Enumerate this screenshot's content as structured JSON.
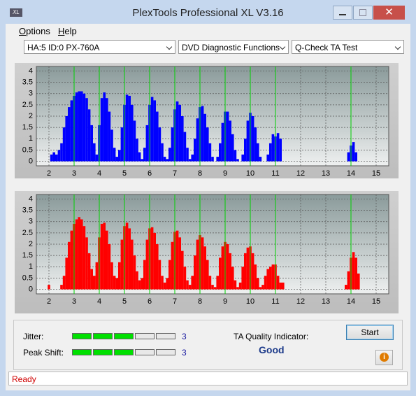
{
  "window": {
    "title": "PlexTools Professional XL V3.16"
  },
  "menu": [
    "Options",
    "Help"
  ],
  "selectors": [
    "HA:5 ID:0  PX-760A",
    "DVD Diagnostic Functions",
    "Q-Check TA Test"
  ],
  "chart_data": [
    {
      "type": "bar",
      "color": "#0000ff",
      "x": [
        2,
        2.1,
        2.2,
        2.3,
        2.4,
        2.5,
        2.6,
        2.7,
        2.8,
        2.9,
        3,
        3.1,
        3.2,
        3.3,
        3.4,
        3.5,
        3.6,
        3.7,
        3.8,
        3.9,
        4,
        4.1,
        4.2,
        4.3,
        4.4,
        4.5,
        4.6,
        4.7,
        4.8,
        4.9,
        5,
        5.1,
        5.2,
        5.3,
        5.4,
        5.5,
        5.6,
        5.7,
        5.8,
        5.9,
        6,
        6.1,
        6.2,
        6.3,
        6.4,
        6.5,
        6.6,
        6.7,
        6.8,
        6.9,
        7,
        7.1,
        7.2,
        7.3,
        7.4,
        7.5,
        7.6,
        7.7,
        7.8,
        7.9,
        8,
        8.1,
        8.2,
        8.3,
        8.4,
        8.5,
        8.6,
        8.7,
        8.8,
        8.9,
        9,
        9.1,
        9.2,
        9.3,
        9.4,
        9.5,
        9.6,
        9.7,
        9.8,
        9.9,
        10,
        10.1,
        10.2,
        10.3,
        10.4,
        10.5,
        10.6,
        10.7,
        10.8,
        10.9,
        11,
        11.1,
        11.2,
        11.3,
        11.4,
        11.5,
        11.6,
        11.7,
        11.8,
        11.9,
        12,
        12.1,
        12.2,
        12.3,
        12.4,
        12.5,
        12.6,
        12.7,
        12.8,
        12.9,
        13,
        13.1,
        13.2,
        13.3,
        13.4,
        13.5,
        13.6,
        13.7,
        13.8,
        13.9,
        14,
        14.1,
        14.2,
        14.3,
        14.4
      ],
      "values": [
        0,
        0.3,
        0.4,
        0.3,
        0.5,
        0.8,
        1.5,
        2,
        2.4,
        2.7,
        2.9,
        3.05,
        3.1,
        3.1,
        3,
        2.8,
        2.3,
        1.6,
        0.8,
        0.3,
        1.6,
        2.8,
        3.05,
        2.8,
        2.2,
        1.4,
        0.6,
        0.2,
        0.5,
        1.5,
        2.5,
        2.95,
        2.9,
        2.5,
        1.8,
        1,
        0.4,
        0.1,
        0.6,
        1.6,
        2.5,
        2.85,
        2.7,
        2.2,
        1.5,
        0.8,
        0.2,
        0.1,
        0.6,
        1.5,
        2.3,
        2.65,
        2.5,
        2,
        1.3,
        0.6,
        0.1,
        0.3,
        1,
        1.9,
        2.4,
        2.45,
        2.1,
        1.5,
        0.8,
        0.2,
        0,
        0.2,
        0.8,
        1.7,
        2.2,
        2.2,
        1.8,
        1.2,
        0.5,
        0.1,
        0,
        0.3,
        1,
        1.8,
        2.15,
        2,
        1.5,
        0.8,
        0.2,
        0,
        0,
        0.3,
        0.8,
        1.2,
        1.1,
        1.25,
        1,
        0,
        0,
        0,
        0,
        0,
        0,
        0,
        0,
        0,
        0,
        0,
        0,
        0,
        0,
        0,
        0,
        0,
        0,
        0,
        0,
        0,
        0,
        0,
        0,
        0,
        0,
        0.4,
        0.7,
        0.85,
        0.4,
        0,
        0
      ],
      "xlim": [
        1.5,
        15.5
      ],
      "ylim": [
        -0.2,
        4.2
      ],
      "xticks": [
        2,
        3,
        4,
        5,
        6,
        7,
        8,
        9,
        10,
        11,
        12,
        13,
        14,
        15
      ],
      "yticks": [
        0,
        0.5,
        1,
        1.5,
        2,
        2.5,
        3,
        3.5,
        4
      ],
      "grid": true,
      "reference_lines": {
        "values": [
          3,
          4,
          5,
          6,
          7,
          8,
          9,
          10,
          11,
          14
        ],
        "color": "#00d000"
      }
    },
    {
      "type": "bar",
      "color": "#ff0000",
      "x": [
        2,
        2.1,
        2.2,
        2.3,
        2.4,
        2.5,
        2.6,
        2.7,
        2.8,
        2.9,
        3,
        3.1,
        3.2,
        3.3,
        3.4,
        3.5,
        3.6,
        3.7,
        3.8,
        3.9,
        4,
        4.1,
        4.2,
        4.3,
        4.4,
        4.5,
        4.6,
        4.7,
        4.8,
        4.9,
        5,
        5.1,
        5.2,
        5.3,
        5.4,
        5.5,
        5.6,
        5.7,
        5.8,
        5.9,
        6,
        6.1,
        6.2,
        6.3,
        6.4,
        6.5,
        6.6,
        6.7,
        6.8,
        6.9,
        7,
        7.1,
        7.2,
        7.3,
        7.4,
        7.5,
        7.6,
        7.7,
        7.8,
        7.9,
        8,
        8.1,
        8.2,
        8.3,
        8.4,
        8.5,
        8.6,
        8.7,
        8.8,
        8.9,
        9,
        9.1,
        9.2,
        9.3,
        9.4,
        9.5,
        9.6,
        9.7,
        9.8,
        9.9,
        10,
        10.1,
        10.2,
        10.3,
        10.4,
        10.5,
        10.6,
        10.7,
        10.8,
        10.9,
        11,
        11.1,
        11.2,
        11.3,
        11.4,
        11.5,
        11.6,
        11.7,
        11.8,
        11.9,
        12,
        12.1,
        12.2,
        12.3,
        12.4,
        12.5,
        12.6,
        12.7,
        12.8,
        12.9,
        13,
        13.1,
        13.2,
        13.3,
        13.4,
        13.5,
        13.6,
        13.7,
        13.8,
        13.9,
        14,
        14.1,
        14.2,
        14.3,
        14.4
      ],
      "values": [
        0.2,
        0,
        0,
        0,
        0,
        0.2,
        0.6,
        1.4,
        2.1,
        2.6,
        2.9,
        3.1,
        3.2,
        3.1,
        2.8,
        2.3,
        1.6,
        0.9,
        0.6,
        1.2,
        2.3,
        2.9,
        2.95,
        2.6,
        2,
        1.2,
        0.6,
        0.5,
        1.2,
        2.2,
        2.8,
        2.95,
        2.7,
        2.2,
        1.5,
        0.8,
        0.4,
        0.5,
        1.3,
        2.2,
        2.7,
        2.75,
        2.5,
        2,
        1.3,
        0.6,
        0.3,
        0.5,
        1.3,
        2.1,
        2.55,
        2.6,
        2.3,
        1.7,
        1,
        0.4,
        0.2,
        0.6,
        1.5,
        2.2,
        2.4,
        2.3,
        1.9,
        1.3,
        0.6,
        0.2,
        0.1,
        0.6,
        1.4,
        1.9,
        2.1,
        2,
        1.6,
        1,
        0.4,
        0.1,
        0.3,
        1,
        1.6,
        1.85,
        1.9,
        1.6,
        1.1,
        0.5,
        0.1,
        0.2,
        0.6,
        0.9,
        1,
        1.1,
        1.1,
        0.6,
        0.3,
        0.3,
        0,
        0,
        0,
        0,
        0,
        0,
        0,
        0,
        0,
        0,
        0,
        0,
        0,
        0,
        0,
        0,
        0,
        0,
        0,
        0,
        0,
        0,
        0,
        0,
        0.2,
        0.8,
        1.4,
        1.65,
        1.4,
        0.7,
        0
      ],
      "xlim": [
        1.5,
        15.5
      ],
      "ylim": [
        -0.2,
        4.2
      ],
      "xticks": [
        2,
        3,
        4,
        5,
        6,
        7,
        8,
        9,
        10,
        11,
        12,
        13,
        14,
        15
      ],
      "yticks": [
        0,
        0.5,
        1,
        1.5,
        2,
        2.5,
        3,
        3.5,
        4
      ],
      "grid": true,
      "reference_lines": {
        "values": [
          3,
          4,
          5,
          6,
          7,
          8,
          9,
          10,
          11,
          14
        ],
        "color": "#00d000"
      }
    }
  ],
  "meters": [
    {
      "label": "Jitter:",
      "value": 3,
      "segments": 5,
      "color": "#00e000"
    },
    {
      "label": "Peak Shift:",
      "value": 3,
      "segments": 5,
      "color": "#00e000"
    }
  ],
  "quality": {
    "label": "TA Quality Indicator:",
    "value": "Good"
  },
  "start_button": "Start",
  "status": "Ready"
}
